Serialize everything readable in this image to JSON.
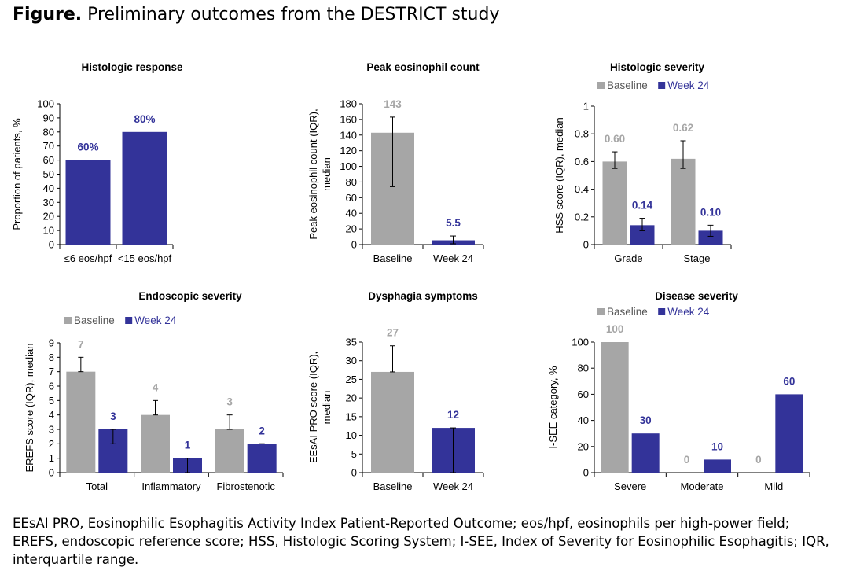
{
  "figure": {
    "label": "Figure.",
    "title": "Preliminary outcomes from the DESTRICT study",
    "footnote": "EEsAI PRO, Eosinophilic Esophagitis Activity Index Patient-Reported Outcome; eos/hpf, eosinophils per high-power field; EREFS, endoscopic reference score; HSS, Histologic Scoring System; I-SEE, Index of Severity for Eosinophilic Esophagitis; IQR, interquartile range."
  },
  "colors": {
    "baseline": "#a6a6a6",
    "week24": "#333399",
    "baseline_label": "#a6a6a6",
    "week24_label": "#333399"
  },
  "chart_data": [
    {
      "type": "bar",
      "title": "Histologic response",
      "ylabel": [
        "Proportion of patients, %"
      ],
      "ylim": [
        0,
        100
      ],
      "yticks": [
        0,
        10,
        20,
        30,
        40,
        50,
        60,
        70,
        80,
        90,
        100
      ],
      "categories": [
        "≤6 eos/hpf",
        "<15 eos/hpf"
      ],
      "legend": false,
      "series": [
        {
          "key": "week24",
          "values": [
            60,
            80
          ],
          "labels": [
            "60%",
            "80%"
          ]
        }
      ]
    },
    {
      "type": "bar",
      "title": "Peak eosinophil count",
      "ylabel": [
        "Peak eosinophil count (IQR),",
        "median"
      ],
      "ylim": [
        0,
        180
      ],
      "yticks": [
        0,
        20,
        40,
        60,
        80,
        100,
        120,
        140,
        160,
        180
      ],
      "categories": [
        "Baseline",
        "Week 24"
      ],
      "legend": false,
      "series": [
        {
          "key": "mixed",
          "colors": [
            "baseline",
            "week24"
          ],
          "values": [
            143,
            5.5
          ],
          "labels": [
            "143",
            "5.5"
          ],
          "err_low": [
            74,
            1
          ],
          "err_high": [
            163,
            11
          ]
        }
      ]
    },
    {
      "type": "bar",
      "title": "Histologic severity",
      "ylabel": [
        "HSS score (IQR), median"
      ],
      "ylim": [
        0,
        1
      ],
      "yticks": [
        0,
        0.2,
        0.4,
        0.6,
        0.8,
        1
      ],
      "ytick_labels": [
        "0",
        "0.2",
        "0.4",
        "0.6",
        "0.8",
        "1"
      ],
      "categories": [
        "Grade",
        "Stage"
      ],
      "legend": true,
      "series": [
        {
          "key": "baseline",
          "name": "Baseline",
          "values": [
            0.6,
            0.62
          ],
          "labels": [
            "0.60",
            "0.62"
          ],
          "err_low": [
            0.55,
            0.55
          ],
          "err_high": [
            0.67,
            0.75
          ]
        },
        {
          "key": "week24",
          "name": "Week 24",
          "values": [
            0.14,
            0.1
          ],
          "labels": [
            "0.14",
            "0.10"
          ],
          "err_low": [
            0.1,
            0.06
          ],
          "err_high": [
            0.19,
            0.14
          ]
        }
      ]
    },
    {
      "type": "bar",
      "title": "Endoscopic severity",
      "ylabel": [
        "EREFS score (IQR), median"
      ],
      "ylim": [
        0,
        9
      ],
      "yticks": [
        0,
        1,
        2,
        3,
        4,
        5,
        6,
        7,
        8,
        9
      ],
      "categories": [
        "Total",
        "Inflammatory",
        "Fibrostenotic"
      ],
      "legend": true,
      "series": [
        {
          "key": "baseline",
          "name": "Baseline",
          "values": [
            7,
            4,
            3
          ],
          "labels": [
            "7",
            "4",
            "3"
          ],
          "err_low": [
            7,
            4,
            3
          ],
          "err_high": [
            8,
            5,
            4
          ]
        },
        {
          "key": "week24",
          "name": "Week 24",
          "values": [
            3,
            1,
            2
          ],
          "labels": [
            "3",
            "1",
            "2"
          ],
          "err_low": [
            2,
            0,
            2
          ],
          "err_high": [
            3,
            1,
            2
          ]
        }
      ]
    },
    {
      "type": "bar",
      "title": "Dysphagia symptoms",
      "ylabel": [
        "EEsAI PRO score (IQR),",
        "median"
      ],
      "ylim": [
        0,
        35
      ],
      "yticks": [
        0,
        5,
        10,
        15,
        20,
        25,
        30,
        35
      ],
      "categories": [
        "Baseline",
        "Week 24"
      ],
      "legend": false,
      "series": [
        {
          "key": "mixed",
          "colors": [
            "baseline",
            "week24"
          ],
          "values": [
            27,
            12
          ],
          "labels": [
            "27",
            "12"
          ],
          "err_low": [
            27,
            0
          ],
          "err_high": [
            34,
            12
          ]
        }
      ]
    },
    {
      "type": "bar",
      "title": "Disease severity",
      "ylabel": [
        "I-SEE category, %"
      ],
      "ylim": [
        0,
        100
      ],
      "yticks": [
        0,
        20,
        40,
        60,
        80,
        100
      ],
      "categories": [
        "Severe",
        "Moderate",
        "Mild"
      ],
      "legend": true,
      "series": [
        {
          "key": "baseline",
          "name": "Baseline",
          "values": [
            100,
            0,
            0
          ],
          "labels": [
            "100",
            "0",
            "0"
          ]
        },
        {
          "key": "week24",
          "name": "Week 24",
          "values": [
            30,
            10,
            60
          ],
          "labels": [
            "30",
            "10",
            "60"
          ]
        }
      ]
    }
  ]
}
